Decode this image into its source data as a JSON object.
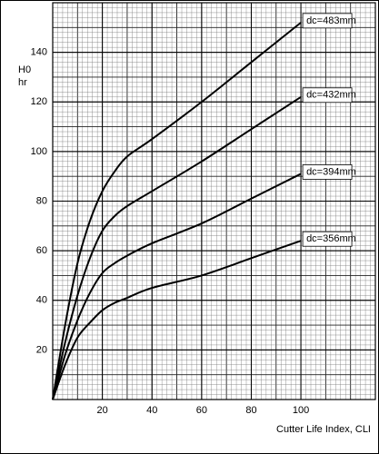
{
  "chart_data": {
    "type": "line",
    "y_label": "H0",
    "y_unit": "hr",
    "x_label": "Cutter Life Index, CLI",
    "x": [
      0,
      5,
      10,
      15,
      20,
      25,
      30,
      40,
      60,
      80,
      100
    ],
    "series": [
      {
        "name": "dc=483mm",
        "color": "#000000",
        "values": [
          0,
          30,
          55,
          72,
          84,
          92,
          98,
          105,
          120,
          136,
          152
        ]
      },
      {
        "name": "dc=432mm",
        "color": "#000000",
        "values": [
          0,
          23,
          42,
          57,
          68,
          74,
          78,
          84,
          96,
          109,
          122
        ]
      },
      {
        "name": "dc=394mm",
        "color": "#000000",
        "values": [
          0,
          18,
          32,
          43,
          51,
          55,
          58,
          63,
          71,
          81,
          91
        ]
      },
      {
        "name": "dc=356mm",
        "color": "#000000",
        "values": [
          0,
          14,
          25,
          31,
          36,
          39,
          41,
          45,
          50,
          57,
          64
        ]
      }
    ],
    "xlim": [
      0,
      130
    ],
    "ylim": [
      0,
      160
    ],
    "xticks": [
      20,
      40,
      60,
      80,
      100
    ],
    "yticks": [
      20,
      40,
      60,
      80,
      100,
      120,
      140
    ],
    "grid": true
  }
}
